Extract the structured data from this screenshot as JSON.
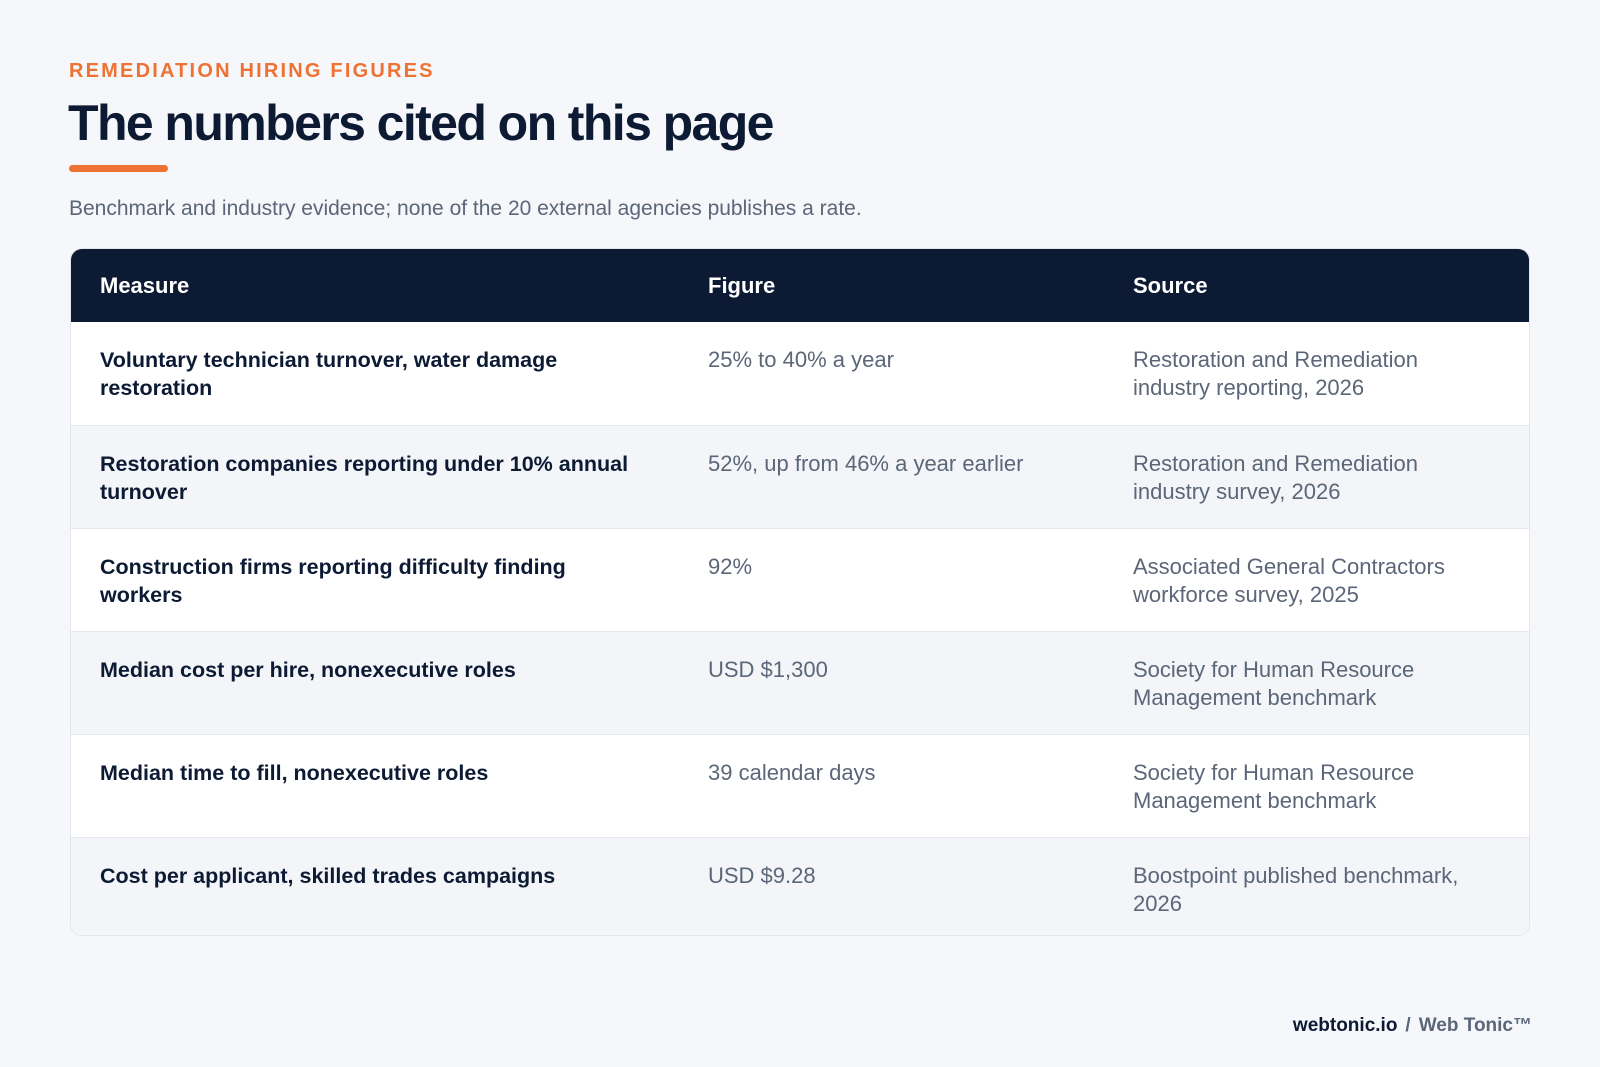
{
  "header": {
    "eyebrow": "REMEDIATION HIRING FIGURES",
    "title": "The numbers cited on this page",
    "subtitle": "Benchmark and industry evidence; none of the 20 external agencies publishes a rate."
  },
  "table": {
    "columns": [
      "Measure",
      "Figure",
      "Source"
    ],
    "rows": [
      {
        "measure": "Voluntary technician turnover, water damage restoration",
        "figure": "25% to 40% a year",
        "source": "Restoration and Remediation industry reporting, 2026"
      },
      {
        "measure": "Restoration companies reporting under 10% annual turnover",
        "figure": "52%, up from 46% a year earlier",
        "source": "Restoration and Remediation industry survey, 2026"
      },
      {
        "measure": "Construction firms reporting difficulty finding workers",
        "figure": "92%",
        "source": "Associated General Contractors workforce survey, 2025"
      },
      {
        "measure": "Median cost per hire, nonexecutive roles",
        "figure": "USD $1,300",
        "source": "Society for Human Resource Management benchmark"
      },
      {
        "measure": "Median time to fill, nonexecutive roles",
        "figure": "39 calendar days",
        "source": "Society for Human Resource Management benchmark"
      },
      {
        "measure": "Cost per applicant, skilled trades campaigns",
        "figure": "USD $9.28",
        "source": "Boostpoint published benchmark, 2026"
      }
    ]
  },
  "footer": {
    "domain": "webtonic.io",
    "separator": "/",
    "brand": "Web Tonic™"
  },
  "colors": {
    "accent": "#ee7233",
    "navy": "#0c1a33",
    "muted": "#5b6678",
    "background": "#f5f7fa"
  }
}
